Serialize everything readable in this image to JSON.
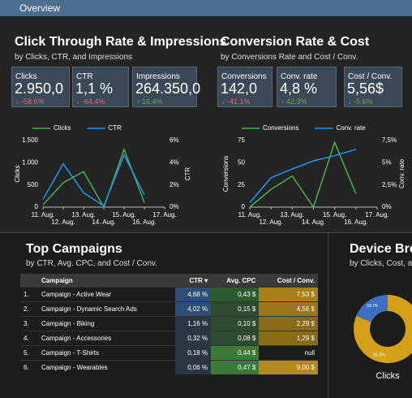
{
  "header": {
    "title": "Overview"
  },
  "sections": [
    {
      "title": "Click Through Rate & Impressions",
      "subtitle": "by Clicks, CTR, and Impressions",
      "kpis": [
        {
          "label": "Clicks",
          "value": "2.950,0",
          "change": "-58.6%",
          "color": "#e06666"
        },
        {
          "label": "CTR",
          "value": "1,1 %",
          "change": "-64.4%",
          "color": "#e06666"
        },
        {
          "label": "Impressions",
          "value": "264.350,0",
          "change": "16.4%",
          "color": "#6aa84f"
        }
      ]
    },
    {
      "title": "Conversion Rate & Cost",
      "subtitle": "by Conversions Rate and Cost / Conv.",
      "kpis": [
        {
          "label": "Conversions",
          "value": "142,0",
          "change": "-41.1%",
          "color": "#e06666"
        },
        {
          "label": "Conv. rate",
          "value": "4,8 %",
          "change": "42.3%",
          "color": "#6aa84f"
        },
        {
          "label": "Cost / Conv.",
          "value": "5,56$",
          "change": "-5.6%",
          "color": "#6aa84f"
        }
      ]
    }
  ],
  "table": {
    "title": "Top Campaigns",
    "subtitle": "by CTR, Avg. CPC, and Cost / Conv.",
    "columns": [
      "Campaign",
      "CTR",
      "Avg. CPC",
      "Cost / Conv."
    ],
    "rows": [
      [
        "1.",
        "Campaign - Active Wear",
        "4,68 %",
        "0,43 $",
        "7,53 $"
      ],
      [
        "2.",
        "Campaign - Dynamic Search Ads",
        "4,02 %",
        "0,15 $",
        "4,56 $"
      ],
      [
        "3.",
        "Campaign - Biking",
        "1,16 %",
        "0,10 $",
        "2,29 $"
      ],
      [
        "4.",
        "Campaign - Accessories",
        "0,32 %",
        "0,08 $",
        "1,29 $"
      ],
      [
        "5.",
        "Campaign - T-Shirts",
        "0,18 %",
        "0,44 $",
        "null"
      ],
      [
        "6.",
        "Campaign - Wearables",
        "0,06 %",
        "0,47 $",
        "9,00 $"
      ]
    ]
  },
  "device": {
    "title": "Device Brea",
    "subtitle": "by Clicks, Cost, and"
  },
  "chart_data": [
    {
      "type": "line",
      "categories": [
        "11. Aug.",
        "12. Aug.",
        "13. Aug.",
        "14. Aug.",
        "15. Aug.",
        "16. Aug.",
        "17. Aug."
      ],
      "series": [
        {
          "name": "Clicks",
          "color": "#4caf50",
          "values": [
            50,
            550,
            800,
            0,
            1300,
            100,
            null
          ]
        },
        {
          "name": "CTR",
          "color": "#2196f3",
          "axis": "y2",
          "values": [
            0.7,
            3.9,
            1.3,
            0.1,
            4.7,
            1.1,
            null
          ]
        }
      ],
      "ylabel": "Clicks",
      "y2label": "CTR",
      "ylim": [
        0,
        1500
      ],
      "yticks": [
        0,
        500,
        {
          "value": 1000,
          "label": "1.000"
        },
        {
          "value": 1500,
          "label": "1.500"
        }
      ],
      "y2lim": [
        0,
        6
      ],
      "y2ticks": [
        {
          "value": 0,
          "label": "0%"
        },
        {
          "value": 2,
          "label": "2%"
        },
        {
          "value": 4,
          "label": "4%"
        },
        {
          "value": 6,
          "label": "6%"
        }
      ]
    },
    {
      "type": "line",
      "categories": [
        "11. Aug.",
        "12. Aug.",
        "13. Aug.",
        "14. Aug.",
        "15. Aug.",
        "16. Aug.",
        "17. Aug."
      ],
      "series": [
        {
          "name": "Conversions",
          "color": "#4caf50",
          "values": [
            0,
            20,
            35,
            0,
            73,
            15,
            null
          ]
        },
        {
          "name": "Conv. rate",
          "color": "#2196f3",
          "axis": "y2",
          "values": [
            0.5,
            3.3,
            4.3,
            5.2,
            5.8,
            6.5,
            null
          ]
        }
      ],
      "ylabel": "Conversions",
      "y2label": "Conv. rate",
      "ylim": [
        0,
        75
      ],
      "yticks": [
        0,
        25,
        50,
        75
      ],
      "y2lim": [
        0,
        7.5
      ],
      "y2ticks": [
        {
          "value": 0,
          "label": "0%"
        },
        {
          "value": 2.5,
          "label": "2,5%"
        },
        {
          "value": 5,
          "label": "5%"
        },
        {
          "value": 7.5,
          "label": "7,5%"
        }
      ]
    },
    {
      "type": "pie",
      "values": [
        81.3,
        18.7
      ],
      "value_labels": [
        "81.3%",
        "18.7%"
      ],
      "colors": [
        "#d4a017",
        "#3d6fc4"
      ],
      "caption": "Clicks"
    }
  ]
}
